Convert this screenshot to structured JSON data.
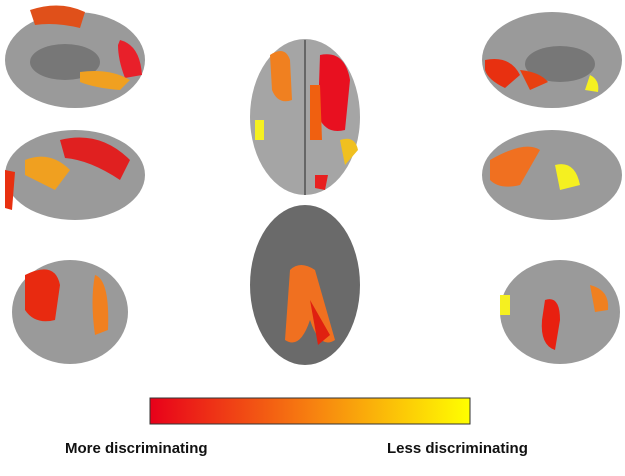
{
  "legend": {
    "left_label": "More discriminating",
    "right_label": "Less discriminating"
  }
}
